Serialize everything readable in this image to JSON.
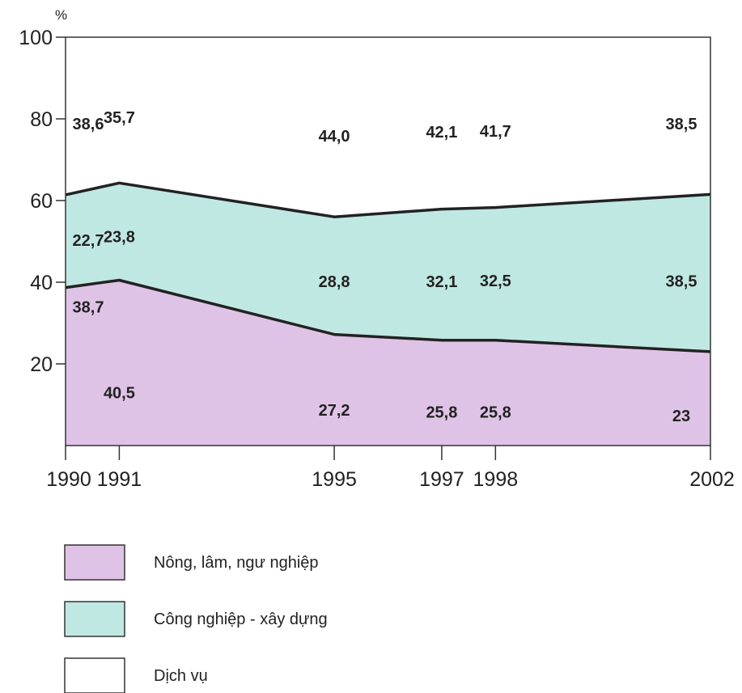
{
  "chart_data": {
    "type": "area",
    "stacked": true,
    "percent": true,
    "y_unit": "%",
    "x": [
      1990,
      1991,
      1995,
      1997,
      1998,
      2002
    ],
    "x_tick_labels": [
      "1990",
      "1991",
      "1995",
      "1997",
      "1998",
      "2002"
    ],
    "ylim": [
      0,
      100
    ],
    "y_ticks": [
      20,
      40,
      60,
      80,
      100
    ],
    "y_tick_labels": [
      "20",
      "40",
      "60",
      "80",
      "100"
    ],
    "series": [
      {
        "name": "Nông, lâm, ngư nghiệp",
        "values": [
          38.7,
          40.5,
          27.2,
          25.8,
          25.8,
          23
        ],
        "labels": [
          "38,7",
          "40,5",
          "27,2",
          "25,8",
          "25,8",
          "23"
        ],
        "color": "#dfc3e6"
      },
      {
        "name": "Công nghiệp - xây dựng",
        "values": [
          22.7,
          23.8,
          28.8,
          32.1,
          32.5,
          38.5
        ],
        "labels": [
          "22,7",
          "23,8",
          "28,8",
          "32,1",
          "32,5",
          "38,5"
        ],
        "color": "#c0e8e3"
      },
      {
        "name": "Dịch vụ",
        "values": [
          38.6,
          35.7,
          44.0,
          42.1,
          41.7,
          38.5
        ],
        "labels": [
          "38,6",
          "35,7",
          "44,0",
          "42,1",
          "41,7",
          "38,5"
        ],
        "color": "#ffffff"
      }
    ],
    "boundary_color": "#222222",
    "grid": false,
    "legend_position": "bottom-left"
  }
}
